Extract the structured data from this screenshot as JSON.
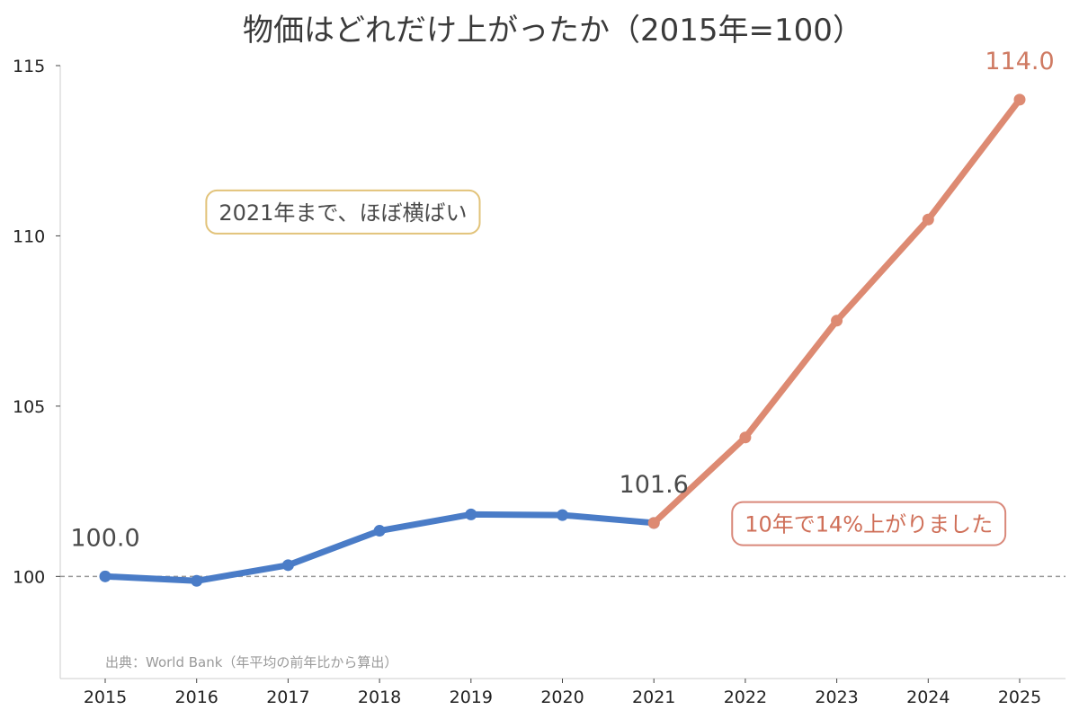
{
  "chart_data": {
    "type": "line",
    "title": "物価はどれだけ上がったか（2015年=100）",
    "xlabel": "",
    "ylabel": "",
    "x": [
      2015,
      2016,
      2017,
      2018,
      2019,
      2020,
      2021,
      2022,
      2023,
      2024,
      2025
    ],
    "x_tick_labels": [
      "2015",
      "2016",
      "2017",
      "2018",
      "2019",
      "2020",
      "2021",
      "2022",
      "2023",
      "2024",
      "2025"
    ],
    "ylim": [
      97,
      115
    ],
    "y_ticks": [
      100,
      105,
      110,
      115
    ],
    "y_tick_labels": [
      "100",
      "105",
      "110",
      "115"
    ],
    "grid": false,
    "reference_line": {
      "y": 100,
      "style": "dashed",
      "color": "#999999"
    },
    "series": [
      {
        "x": [
          2015,
          2016,
          2017,
          2018,
          2019,
          2020,
          2021
        ],
        "values": [
          100.0,
          99.87,
          100.33,
          101.34,
          101.82,
          101.8,
          101.57
        ],
        "color": "#4a7cc7"
      },
      {
        "x": [
          2021,
          2022,
          2023,
          2024,
          2025
        ],
        "values": [
          101.57,
          104.08,
          107.51,
          110.48,
          114.0
        ],
        "color": "#dd8a72"
      }
    ],
    "point_labels": [
      {
        "text": "100.0",
        "x": 2015,
        "y": 100.0,
        "color": "#4a4a4a"
      },
      {
        "text": "101.6",
        "x": 2021,
        "y": 101.57,
        "color": "#4a4a4a"
      },
      {
        "text": "114.0",
        "x": 2025,
        "y": 114.0,
        "color": "#cf7a62"
      }
    ],
    "annotations": [
      {
        "text": "2021年まで、ほぼ横ばい",
        "x": 2017.6,
        "y": 110.7,
        "border_color": "#e2c37a",
        "text_color": "#4a4a4a"
      },
      {
        "text": "10年で14%上がりました",
        "x": 2023.35,
        "y": 101.55,
        "border_color": "#d9887a",
        "text_color": "#cf6f58"
      }
    ],
    "source": "出典：World Bank（年平均の前年比から算出）"
  }
}
